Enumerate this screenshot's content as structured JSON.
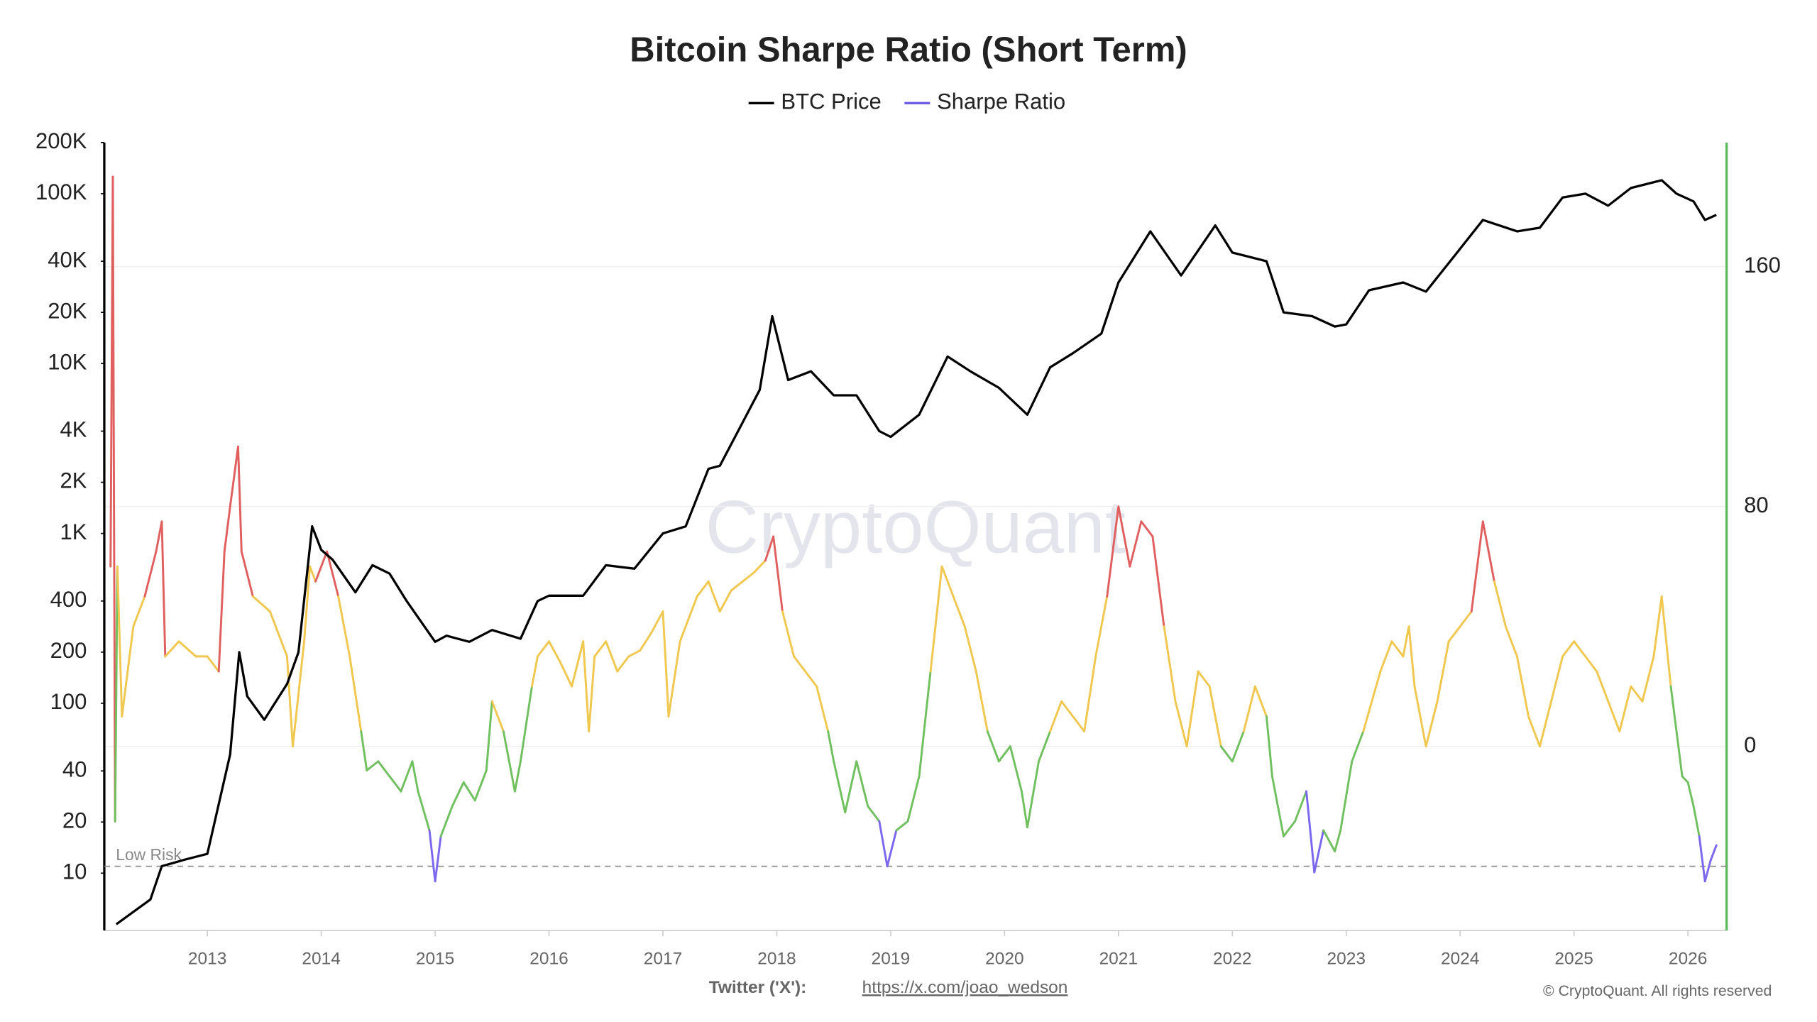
{
  "chart_data": {
    "type": "line",
    "title": "Bitcoin Sharpe Ratio (Short Term)",
    "watermark": "CryptoQuant",
    "xlim": [
      2012.095,
      2026.34
    ],
    "xticks": [
      2013,
      2014,
      2015,
      2016,
      2017,
      2018,
      2019,
      2020,
      2021,
      2022,
      2023,
      2024,
      2025,
      2026
    ],
    "log_y": true,
    "ylim": [
      4.6,
      200000
    ],
    "yticks": [
      10,
      20,
      40,
      100,
      200,
      400,
      {
        "value": 1000,
        "label": "1K"
      },
      {
        "value": 2000,
        "label": "2K"
      },
      {
        "value": 4000,
        "label": "4K"
      },
      {
        "value": 10000,
        "label": "10K"
      },
      {
        "value": 20000,
        "label": "20K"
      },
      {
        "value": 40000,
        "label": "40K"
      },
      {
        "value": 100000,
        "label": "100K"
      },
      {
        "value": 200000,
        "label": "200K"
      }
    ],
    "y2lim": [
      -61.4,
      201.4
    ],
    "y2ticks": [
      0,
      80,
      160
    ],
    "grid": true,
    "legend": "top",
    "left_axis_color": "#000000",
    "right_axis_color": "#5cb85c",
    "low_risk": {
      "label": "Low Risk",
      "value": -40
    },
    "series": [
      {
        "name": "BTC Price",
        "color": "#000000",
        "x": [
          2012.2,
          2012.5,
          2012.6,
          2012.8,
          2013.0,
          2013.2,
          2013.28,
          2013.35,
          2013.5,
          2013.7,
          2013.8,
          2013.92,
          2014.0,
          2014.1,
          2014.3,
          2014.45,
          2014.6,
          2014.75,
          2015.0,
          2015.1,
          2015.3,
          2015.5,
          2015.75,
          2015.9,
          2016.0,
          2016.3,
          2016.5,
          2016.75,
          2017.0,
          2017.2,
          2017.4,
          2017.5,
          2017.7,
          2017.85,
          2017.96,
          2018.1,
          2018.3,
          2018.5,
          2018.7,
          2018.9,
          2019.0,
          2019.25,
          2019.5,
          2019.7,
          2019.95,
          2020.2,
          2020.4,
          2020.6,
          2020.85,
          2021.0,
          2021.28,
          2021.55,
          2021.85,
          2022.0,
          2022.3,
          2022.45,
          2022.7,
          2022.9,
          2023.0,
          2023.2,
          2023.5,
          2023.7,
          2023.95,
          2024.2,
          2024.5,
          2024.7,
          2024.9,
          2025.1,
          2025.3,
          2025.5,
          2025.77,
          2025.9,
          2026.05,
          2026.15,
          2026.25
        ],
        "values": [
          5,
          7,
          11,
          12,
          13,
          50,
          200,
          110,
          80,
          130,
          200,
          1100,
          800,
          700,
          450,
          650,
          580,
          400,
          230,
          250,
          230,
          270,
          240,
          400,
          430,
          430,
          650,
          620,
          1000,
          1100,
          2400,
          2500,
          4500,
          7000,
          19000,
          8000,
          9000,
          6500,
          6500,
          4000,
          3700,
          5000,
          11000,
          9000,
          7200,
          5000,
          9500,
          11500,
          15000,
          30000,
          60000,
          33000,
          65000,
          45000,
          40000,
          20000,
          19000,
          16500,
          17000,
          27000,
          30000,
          26500,
          43000,
          70000,
          60000,
          63000,
          95000,
          100000,
          85000,
          108000,
          120000,
          100000,
          90000,
          70000,
          75000
        ]
      },
      {
        "name": "Sharpe Ratio",
        "color": "#6c5ce7",
        "axis": "y2",
        "color_bands": [
          {
            "min": 64,
            "color": "#e06060"
          },
          {
            "min": 0,
            "color": "#f0c850"
          },
          {
            "min": -37,
            "color": "#70c060"
          },
          {
            "color": "#7b68ee"
          }
        ],
        "x": [
          2012.15,
          2012.17,
          2012.19,
          2012.21,
          2012.25,
          2012.35,
          2012.45,
          2012.55,
          2012.6,
          2012.63,
          2012.75,
          2012.9,
          2013.0,
          2013.1,
          2013.15,
          2013.2,
          2013.27,
          2013.3,
          2013.4,
          2013.55,
          2013.7,
          2013.75,
          2013.85,
          2013.9,
          2013.95,
          2014.05,
          2014.15,
          2014.25,
          2014.35,
          2014.4,
          2014.5,
          2014.6,
          2014.7,
          2014.8,
          2014.85,
          2014.95,
          2015.0,
          2015.05,
          2015.15,
          2015.25,
          2015.35,
          2015.45,
          2015.5,
          2015.6,
          2015.7,
          2015.75,
          2015.85,
          2015.9,
          2016.0,
          2016.1,
          2016.2,
          2016.3,
          2016.35,
          2016.4,
          2016.5,
          2016.6,
          2016.7,
          2016.8,
          2016.9,
          2017.0,
          2017.05,
          2017.15,
          2017.3,
          2017.4,
          2017.5,
          2017.6,
          2017.7,
          2017.8,
          2017.9,
          2017.97,
          2018.05,
          2018.15,
          2018.25,
          2018.35,
          2018.45,
          2018.5,
          2018.6,
          2018.7,
          2018.8,
          2018.9,
          2018.97,
          2019.05,
          2019.15,
          2019.25,
          2019.35,
          2019.45,
          2019.55,
          2019.65,
          2019.75,
          2019.85,
          2019.95,
          2020.05,
          2020.15,
          2020.2,
          2020.3,
          2020.4,
          2020.5,
          2020.6,
          2020.7,
          2020.8,
          2020.9,
          2021.0,
          2021.1,
          2021.2,
          2021.3,
          2021.4,
          2021.5,
          2021.6,
          2021.7,
          2021.8,
          2021.9,
          2022.0,
          2022.1,
          2022.2,
          2022.3,
          2022.35,
          2022.45,
          2022.55,
          2022.65,
          2022.72,
          2022.8,
          2022.9,
          2022.95,
          2023.05,
          2023.15,
          2023.3,
          2023.4,
          2023.5,
          2023.55,
          2023.6,
          2023.7,
          2023.8,
          2023.9,
          2024.0,
          2024.1,
          2024.2,
          2024.3,
          2024.4,
          2024.5,
          2024.6,
          2024.7,
          2024.8,
          2024.9,
          2025.0,
          2025.1,
          2025.2,
          2025.3,
          2025.4,
          2025.5,
          2025.6,
          2025.7,
          2025.77,
          2025.85,
          2025.95,
          2026.0,
          2026.05,
          2026.1,
          2026.15,
          2026.2,
          2026.25
        ],
        "values": [
          60,
          190,
          -25,
          60,
          10,
          40,
          50,
          65,
          75,
          30,
          35,
          30,
          30,
          25,
          65,
          80,
          100,
          65,
          50,
          45,
          30,
          0,
          35,
          60,
          55,
          65,
          50,
          30,
          5,
          -8,
          -5,
          -10,
          -15,
          -5,
          -15,
          -28,
          -45,
          -30,
          -20,
          -12,
          -18,
          -8,
          15,
          5,
          -15,
          -5,
          20,
          30,
          35,
          28,
          20,
          35,
          5,
          30,
          35,
          25,
          30,
          32,
          38,
          45,
          10,
          35,
          50,
          55,
          45,
          52,
          55,
          58,
          62,
          70,
          45,
          30,
          25,
          20,
          5,
          -5,
          -22,
          -5,
          -20,
          -25,
          -40,
          -28,
          -25,
          -10,
          25,
          60,
          50,
          40,
          25,
          5,
          -5,
          0,
          -15,
          -27,
          -5,
          5,
          15,
          10,
          5,
          30,
          50,
          80,
          60,
          75,
          70,
          40,
          15,
          0,
          25,
          20,
          0,
          -5,
          5,
          20,
          10,
          -10,
          -30,
          -25,
          -15,
          -42,
          -28,
          -35,
          -28,
          -5,
          5,
          25,
          35,
          30,
          40,
          20,
          0,
          15,
          35,
          40,
          45,
          75,
          55,
          40,
          30,
          10,
          0,
          15,
          30,
          35,
          30,
          25,
          15,
          5,
          20,
          15,
          30,
          50,
          20,
          -10,
          -12,
          -20,
          -30,
          -45,
          -38,
          -33
        ]
      }
    ]
  },
  "footer": {
    "twitter_label": "Twitter ('X'):",
    "twitter_url": "https://x.com/joao_wedson",
    "copyright": "© CryptoQuant. All rights reserved"
  }
}
